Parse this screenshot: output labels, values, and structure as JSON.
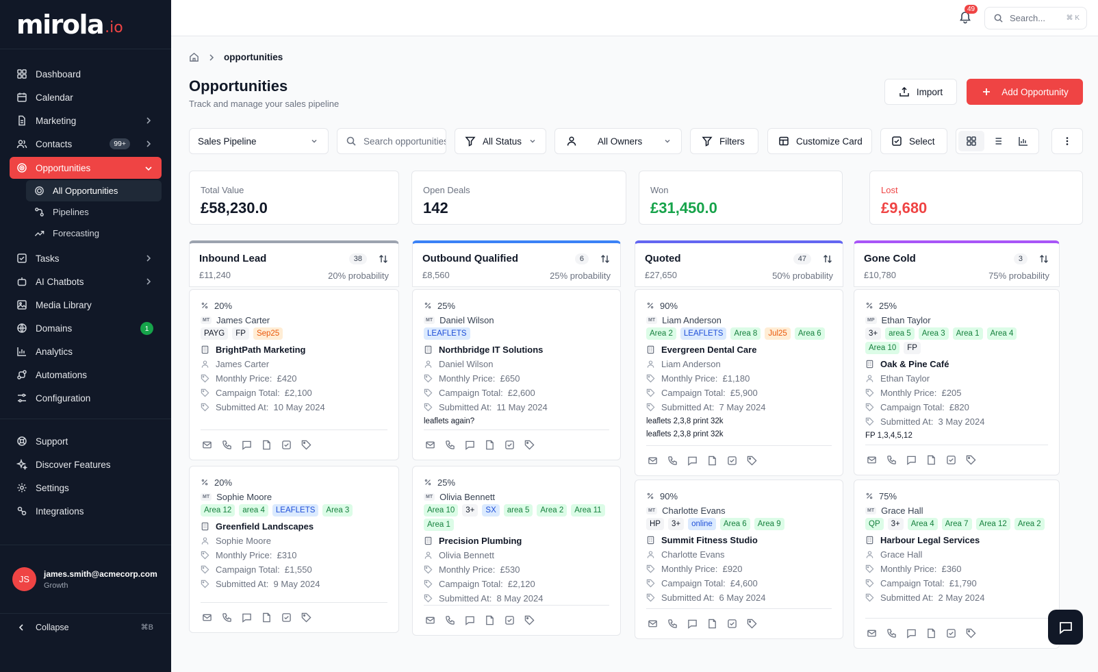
{
  "app": {
    "logo_main": "mirola",
    "logo_sub": ".io"
  },
  "sidebar": {
    "items": [
      {
        "label": "Dashboard",
        "icon": "grid-icon"
      },
      {
        "label": "Calendar",
        "icon": "calendar-icon"
      },
      {
        "label": "Marketing",
        "icon": "document-icon"
      },
      {
        "label": "Contacts",
        "icon": "users-icon",
        "badge": "99+"
      },
      {
        "label": "Opportunities",
        "icon": "target-icon"
      },
      {
        "label": "Tasks",
        "icon": "checkbox-icon"
      },
      {
        "label": "AI Chatbots",
        "icon": "bot-icon"
      },
      {
        "label": "Media Library",
        "icon": "image-icon"
      },
      {
        "label": "Domains",
        "icon": "globe-icon",
        "badge": "1"
      },
      {
        "label": "Analytics",
        "icon": "bar-chart-icon"
      },
      {
        "label": "Automations",
        "icon": "automation-icon"
      },
      {
        "label": "Configuration",
        "icon": "config-icon"
      }
    ],
    "sub_items": [
      {
        "label": "All Opportunities",
        "icon": "target-icon"
      },
      {
        "label": "Pipelines",
        "icon": "pipeline-icon"
      },
      {
        "label": "Forecasting",
        "icon": "trend-icon"
      }
    ],
    "bottom_items": [
      {
        "label": "Support",
        "icon": "lifebuoy-icon"
      },
      {
        "label": "Discover Features",
        "icon": "sparkle-icon"
      },
      {
        "label": "Settings",
        "icon": "gear-icon"
      },
      {
        "label": "Integrations",
        "icon": "plug-icon"
      }
    ],
    "user": {
      "initials": "JS",
      "email": "james.smith@acmecorp.com",
      "plan": "Growth"
    },
    "collapse": {
      "label": "Collapse",
      "shortcut": "⌘B"
    }
  },
  "topbar": {
    "notifications": "49",
    "search_placeholder": "Search...",
    "search_shortcut": "⌘ K"
  },
  "breadcrumb": {
    "current": "opportunities"
  },
  "header": {
    "title": "Opportunities",
    "subtitle": "Track and manage your sales pipeline",
    "import_label": "Import",
    "add_label": "Add Opportunity"
  },
  "toolbar": {
    "pipeline": "Sales Pipeline",
    "search_placeholder": "Search opportunities",
    "status": "All Status",
    "owners": "All Owners",
    "filters": "Filters",
    "customize": "Customize Card",
    "select": "Select"
  },
  "stats": [
    {
      "label": "Total Value",
      "value": "£58,230.0"
    },
    {
      "label": "Open Deals",
      "value": "142"
    },
    {
      "label": "Won",
      "value": "£31,450.0"
    },
    {
      "label": "Lost",
      "value": "£9,680"
    }
  ],
  "colors": {
    "accent": "#ef4444",
    "inbound": "#9ca3af",
    "outbound": "#3b82f6",
    "quoted": "#6366f1",
    "gone_cold": "#a855f7"
  },
  "columns": [
    {
      "title": "Inbound Lead",
      "count": "38",
      "value": "£11,240",
      "probability": "20% probability",
      "cards": [
        {
          "prob": "20%",
          "owner": "James Carter",
          "tags": [
            [
              "PAYG",
              "gray"
            ],
            [
              "FP",
              "gray"
            ],
            [
              "Sep25",
              "orange"
            ]
          ],
          "company": "BrightPath Marketing",
          "contact": "James Carter",
          "monthly": "Monthly Price:  £420",
          "campaign": "Campaign Total:  £2,100",
          "submitted": "Submitted At:  10 May 2024",
          "notes": []
        },
        {
          "prob": "20%",
          "owner": "Sophie Moore",
          "tags": [
            [
              "Area 12",
              "green"
            ],
            [
              "area 4",
              "green"
            ],
            [
              "LEAFLETS",
              "blue"
            ],
            [
              "Area 3",
              "green"
            ]
          ],
          "company": "Greenfield Landscapes",
          "contact": "Sophie Moore",
          "monthly": "Monthly Price:  £310",
          "campaign": "Campaign Total:  £1,550",
          "submitted": "Submitted At:  9 May 2024",
          "notes": []
        }
      ]
    },
    {
      "title": "Outbound Qualified",
      "count": "6",
      "value": "£8,560",
      "probability": "25% probability",
      "cards": [
        {
          "prob": "25%",
          "owner": "Daniel Wilson",
          "tags": [
            [
              "LEAFLETS",
              "blue"
            ]
          ],
          "company": "Northbridge IT Solutions",
          "contact": "Daniel Wilson",
          "monthly": "Monthly Price:  £650",
          "campaign": "Campaign Total:  £2,600",
          "submitted": "Submitted At:  11 May 2024",
          "notes": [
            "leaflets again?"
          ]
        },
        {
          "prob": "25%",
          "owner": "Olivia Bennett",
          "tags": [
            [
              "Area 10",
              "green"
            ],
            [
              "3+",
              "gray"
            ],
            [
              "SX",
              "blue"
            ],
            [
              "area 5",
              "green"
            ],
            [
              "Area 2",
              "green"
            ],
            [
              "Area 11",
              "green"
            ],
            [
              "Area 1",
              "green"
            ]
          ],
          "company": "Precision Plumbing",
          "contact": "Olivia Bennett",
          "monthly": "Monthly Price:  £530",
          "campaign": "Campaign Total:  £2,120",
          "submitted": "Submitted At:  8 May 2024",
          "notes": []
        }
      ]
    },
    {
      "title": "Quoted",
      "count": "47",
      "value": "£27,650",
      "probability": "50% probability",
      "cards": [
        {
          "prob": "90%",
          "owner": "Liam Anderson",
          "tags": [
            [
              "Area 2",
              "green"
            ],
            [
              "LEAFLETS",
              "blue"
            ],
            [
              "Area 8",
              "green"
            ],
            [
              "Jul25",
              "orange"
            ],
            [
              "Area 6",
              "green"
            ]
          ],
          "company": "Evergreen Dental Care",
          "contact": "Liam Anderson",
          "monthly": "Monthly Price:  £1,180",
          "campaign": "Campaign Total:  £5,900",
          "submitted": "Submitted At:  7 May 2024",
          "notes": [
            "leaflets 2,3,8 print 32k",
            "leaflets 2,3,8 print 32k"
          ]
        },
        {
          "prob": "90%",
          "owner": "Charlotte Evans",
          "tags": [
            [
              "HP",
              "gray"
            ],
            [
              "3+",
              "gray"
            ],
            [
              "online",
              "blue"
            ],
            [
              "Area 6",
              "green"
            ],
            [
              "Area 9",
              "green"
            ]
          ],
          "company": "Summit Fitness Studio",
          "contact": "Charlotte Evans",
          "monthly": "Monthly Price:  £920",
          "campaign": "Campaign Total:  £4,600",
          "submitted": "Submitted At:  6 May 2024",
          "notes": []
        }
      ]
    },
    {
      "title": "Gone Cold",
      "count": "3",
      "value": "£10,780",
      "probability": "75% probability",
      "cards": [
        {
          "prob": "25%",
          "owner": "Ethan Taylor",
          "owner_tag": "MP",
          "tags": [
            [
              "3+",
              "gray"
            ],
            [
              "area 5",
              "green"
            ],
            [
              "Area 3",
              "green"
            ],
            [
              "Area 1",
              "green"
            ],
            [
              "Area 4",
              "green"
            ],
            [
              "Area 10",
              "green"
            ],
            [
              "FP",
              "gray"
            ]
          ],
          "company": "Oak & Pine Café",
          "contact": "Ethan Taylor",
          "monthly": "Monthly Price:  £205",
          "campaign": "Campaign Total:  £820",
          "submitted": "Submitted At:  3 May 2024",
          "notes": [
            "FP 1,3,4,5,12"
          ]
        },
        {
          "prob": "75%",
          "owner": "Grace Hall",
          "tags": [
            [
              "QP",
              "green"
            ],
            [
              "3+",
              "gray"
            ],
            [
              "Area 4",
              "green"
            ],
            [
              "Area 7",
              "green"
            ],
            [
              "Area 12",
              "green"
            ],
            [
              "Area 2",
              "green"
            ]
          ],
          "company": "Harbour Legal Services",
          "contact": "Grace Hall",
          "monthly": "Monthly Price:  £360",
          "campaign": "Campaign Total:  £1,790",
          "submitted": "Submitted At:  2 May 2024",
          "notes": []
        }
      ]
    }
  ]
}
